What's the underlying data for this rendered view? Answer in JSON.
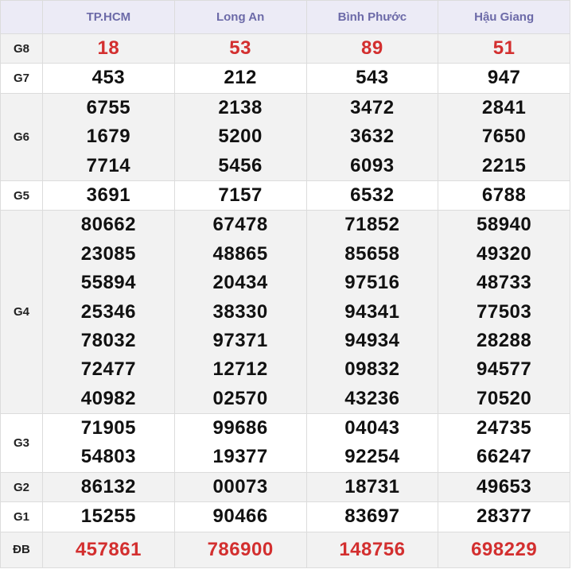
{
  "header": [
    "TP.HCM",
    "Long An",
    "Bình Phước",
    "Hậu Giang"
  ],
  "rows": [
    {
      "label": "G8",
      "cells": [
        [
          "18"
        ],
        [
          "53"
        ],
        [
          "89"
        ],
        [
          "51"
        ]
      ]
    },
    {
      "label": "G7",
      "cells": [
        [
          "453"
        ],
        [
          "212"
        ],
        [
          "543"
        ],
        [
          "947"
        ]
      ]
    },
    {
      "label": "G6",
      "cells": [
        [
          "6755",
          "1679",
          "7714"
        ],
        [
          "2138",
          "5200",
          "5456"
        ],
        [
          "3472",
          "3632",
          "6093"
        ],
        [
          "2841",
          "7650",
          "2215"
        ]
      ]
    },
    {
      "label": "G5",
      "cells": [
        [
          "3691"
        ],
        [
          "7157"
        ],
        [
          "6532"
        ],
        [
          "6788"
        ]
      ]
    },
    {
      "label": "G4",
      "cells": [
        [
          "80662",
          "23085",
          "55894",
          "25346",
          "78032",
          "72477",
          "40982"
        ],
        [
          "67478",
          "48865",
          "20434",
          "38330",
          "97371",
          "12712",
          "02570"
        ],
        [
          "71852",
          "85658",
          "97516",
          "94341",
          "94934",
          "09832",
          "43236"
        ],
        [
          "58940",
          "49320",
          "48733",
          "77503",
          "28288",
          "94577",
          "70520"
        ]
      ]
    },
    {
      "label": "G3",
      "cells": [
        [
          "71905",
          "54803"
        ],
        [
          "99686",
          "19377"
        ],
        [
          "04043",
          "92254"
        ],
        [
          "24735",
          "66247"
        ]
      ]
    },
    {
      "label": "G2",
      "cells": [
        [
          "86132"
        ],
        [
          "00073"
        ],
        [
          "18731"
        ],
        [
          "49653"
        ]
      ]
    },
    {
      "label": "G1",
      "cells": [
        [
          "15255"
        ],
        [
          "90466"
        ],
        [
          "83697"
        ],
        [
          "28377"
        ]
      ]
    },
    {
      "label": "ĐB",
      "cells": [
        [
          "457861"
        ],
        [
          "786900"
        ],
        [
          "148756"
        ],
        [
          "698229"
        ]
      ]
    }
  ]
}
